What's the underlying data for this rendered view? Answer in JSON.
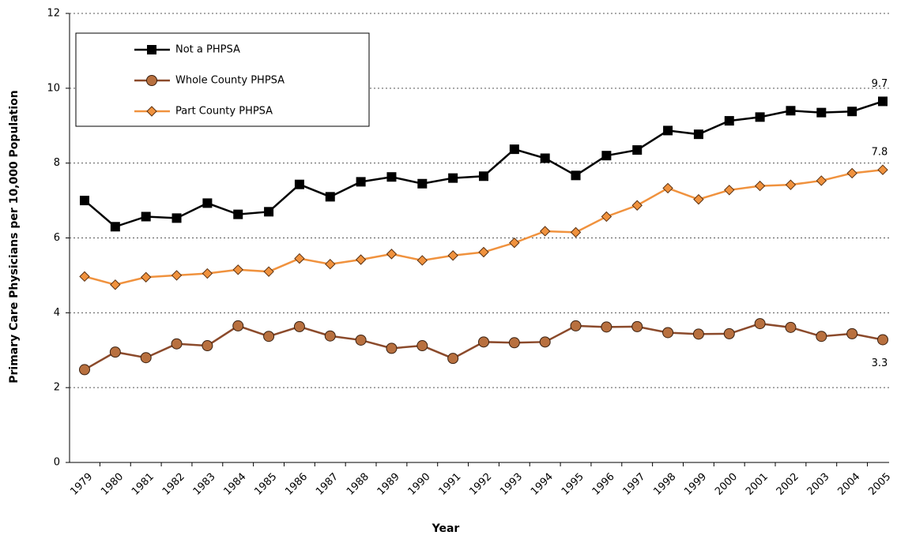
{
  "chart_data": {
    "type": "line",
    "x_label": "Year",
    "y_label": "Primary Care Physicians per 10,000 Population",
    "categories": [
      "1979",
      "1980",
      "1981",
      "1982",
      "1983",
      "1984",
      "1985",
      "1986",
      "1987",
      "1988",
      "1989",
      "1990",
      "1991",
      "1992",
      "1993",
      "1994",
      "1995",
      "1996",
      "1997",
      "1998",
      "1999",
      "2000",
      "2001",
      "2002",
      "2003",
      "2004",
      "2005"
    ],
    "series": [
      {
        "name": "Not a PHPSA",
        "color": "#000000",
        "marker": "square",
        "values": [
          7.0,
          6.3,
          6.57,
          6.53,
          6.93,
          6.63,
          6.7,
          7.43,
          7.1,
          7.5,
          7.63,
          7.45,
          7.6,
          7.65,
          8.37,
          8.13,
          7.67,
          8.2,
          8.35,
          8.87,
          8.77,
          9.13,
          9.23,
          9.4,
          9.35,
          9.38,
          9.65
        ],
        "value_labels": [
          null,
          null,
          null,
          null,
          null,
          null,
          null,
          null,
          null,
          null,
          null,
          null,
          null,
          null,
          null,
          null,
          null,
          null,
          null,
          null,
          null,
          null,
          null,
          null,
          null,
          null,
          "9.7"
        ]
      },
      {
        "name": "Whole County PHPSA",
        "color": "#8b4a2b",
        "marker": "circle",
        "values": [
          2.48,
          2.95,
          2.8,
          3.17,
          3.12,
          3.65,
          3.37,
          3.63,
          3.38,
          3.27,
          3.05,
          3.12,
          2.78,
          3.22,
          3.2,
          3.22,
          3.65,
          3.62,
          3.63,
          3.47,
          3.43,
          3.44,
          3.71,
          3.61,
          3.37,
          3.44,
          3.28
        ],
        "value_labels": [
          null,
          null,
          null,
          null,
          null,
          null,
          null,
          null,
          null,
          null,
          null,
          null,
          null,
          null,
          null,
          null,
          null,
          null,
          null,
          null,
          null,
          null,
          null,
          null,
          null,
          null,
          "3.3"
        ]
      },
      {
        "name": "Part County PHPSA",
        "color": "#f0923e",
        "marker": "diamond",
        "values": [
          4.97,
          4.75,
          4.95,
          5.0,
          5.05,
          5.15,
          5.1,
          5.45,
          5.3,
          5.42,
          5.57,
          5.4,
          5.53,
          5.62,
          5.87,
          6.18,
          6.15,
          6.57,
          6.87,
          7.33,
          7.03,
          7.28,
          7.39,
          7.42,
          7.53,
          7.73,
          7.82
        ],
        "value_labels": [
          null,
          null,
          null,
          null,
          null,
          null,
          null,
          null,
          null,
          null,
          null,
          null,
          null,
          null,
          null,
          null,
          null,
          null,
          null,
          null,
          null,
          null,
          null,
          null,
          null,
          null,
          "7.8"
        ]
      }
    ],
    "ylim": [
      0,
      12
    ],
    "yticks": [
      0,
      2,
      4,
      6,
      8,
      10,
      12
    ],
    "grid": true,
    "legend": "upper left"
  }
}
